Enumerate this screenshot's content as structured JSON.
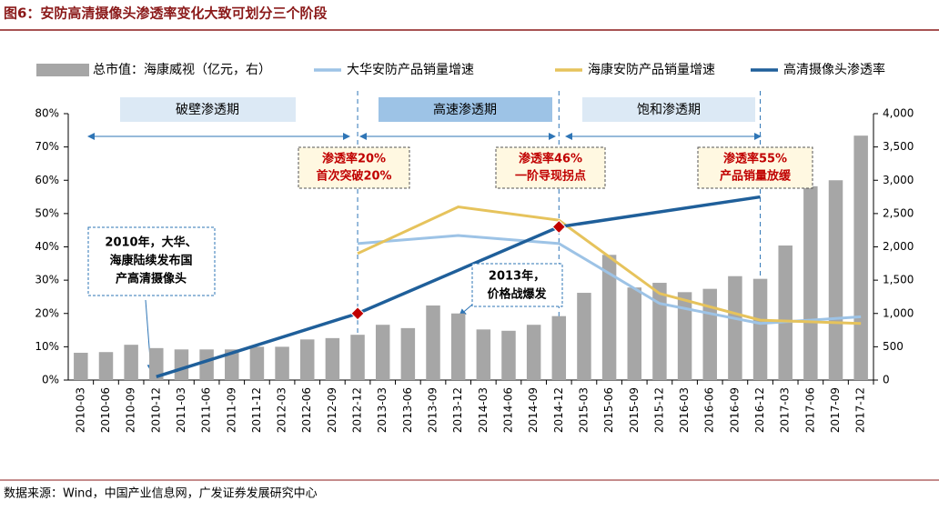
{
  "chart_data": {
    "type": "bar_line",
    "title": "图6：安防高清摄像头渗透率变化大致可划分三个阶段",
    "source": "数据来源：Wind，中国产业信息网，广发证券发展研究中心",
    "categories": [
      "2010-03",
      "2010-06",
      "2010-09",
      "2010-12",
      "2011-03",
      "2011-06",
      "2011-09",
      "2011-12",
      "2012-03",
      "2012-06",
      "2012-09",
      "2012-12",
      "2013-03",
      "2013-06",
      "2013-09",
      "2013-12",
      "2014-03",
      "2014-06",
      "2014-09",
      "2014-12",
      "2015-03",
      "2015-06",
      "2015-09",
      "2015-12",
      "2016-03",
      "2016-06",
      "2016-09",
      "2016-12",
      "2017-03",
      "2017-06",
      "2017-09",
      "2017-12"
    ],
    "series": [
      {
        "name": "总市值：海康威视（亿元，右）",
        "type": "bar",
        "axis": "y2",
        "color": "#a6a6a6",
        "values": [
          410,
          420,
          530,
          480,
          460,
          460,
          460,
          500,
          500,
          610,
          630,
          680,
          830,
          780,
          1120,
          1000,
          760,
          740,
          830,
          960,
          1310,
          1880,
          1390,
          1460,
          1320,
          1370,
          1560,
          1520,
          2020,
          2910,
          3000,
          3670
        ]
      },
      {
        "name": "大华安防产品销量增速",
        "type": "line",
        "color": "#9dc3e6",
        "x": [
          "2012-12",
          "2013-12",
          "2014-12",
          "2015-12",
          "2016-12",
          "2017-12"
        ],
        "values": [
          41,
          43.4,
          41,
          23,
          17,
          19
        ]
      },
      {
        "name": "海康安防产品销量增速",
        "type": "line",
        "color": "#e6c35c",
        "x": [
          "2012-12",
          "2013-12",
          "2014-12",
          "2015-12",
          "2016-12",
          "2017-12"
        ],
        "values": [
          38,
          52,
          48,
          26,
          18,
          17
        ]
      },
      {
        "name": "高清摄像头渗透率",
        "type": "line",
        "color": "#1f5f9a",
        "x": [
          "2010-12",
          "2012-12",
          "2014-12",
          "2016-12"
        ],
        "values": [
          1,
          20,
          46,
          55
        ],
        "marker_x": [
          "2012-12",
          "2014-12"
        ]
      }
    ],
    "ylim": [
      0,
      80
    ],
    "yticks": [
      {
        "value": 0,
        "label": "0%"
      },
      {
        "value": 10,
        "label": "10%"
      },
      {
        "value": 20,
        "label": "20%"
      },
      {
        "value": 30,
        "label": "30%"
      },
      {
        "value": 40,
        "label": "40%"
      },
      {
        "value": 50,
        "label": "50%"
      },
      {
        "value": 60,
        "label": "60%"
      },
      {
        "value": 70,
        "label": "70%"
      },
      {
        "value": 80,
        "label": "80%"
      }
    ],
    "y2lim": [
      0,
      4000
    ],
    "y2ticks": [
      0,
      500,
      {
        "value": 1000,
        "label": "1,000"
      },
      {
        "value": 1500,
        "label": "1,500"
      },
      {
        "value": 2000,
        "label": "2,000"
      },
      {
        "value": 2500,
        "label": "2,500"
      },
      {
        "value": 3000,
        "label": "3,000"
      },
      {
        "value": 3500,
        "label": "3,500"
      },
      {
        "value": 4000,
        "label": "4,000"
      }
    ],
    "phases": [
      "破壁渗透期",
      "高速渗透期",
      "饱和渗透期"
    ],
    "callouts": [
      [
        "渗透率20%",
        "首次突破20%"
      ],
      [
        "渗透率46%",
        "一阶导现拐点"
      ],
      [
        "渗透率55%",
        "产品销量放缓"
      ]
    ],
    "notes": [
      [
        "2010年，大华、",
        "海康陆续发布国",
        "产高清摄像头"
      ],
      [
        "2013年，",
        "价格战爆发"
      ]
    ]
  }
}
